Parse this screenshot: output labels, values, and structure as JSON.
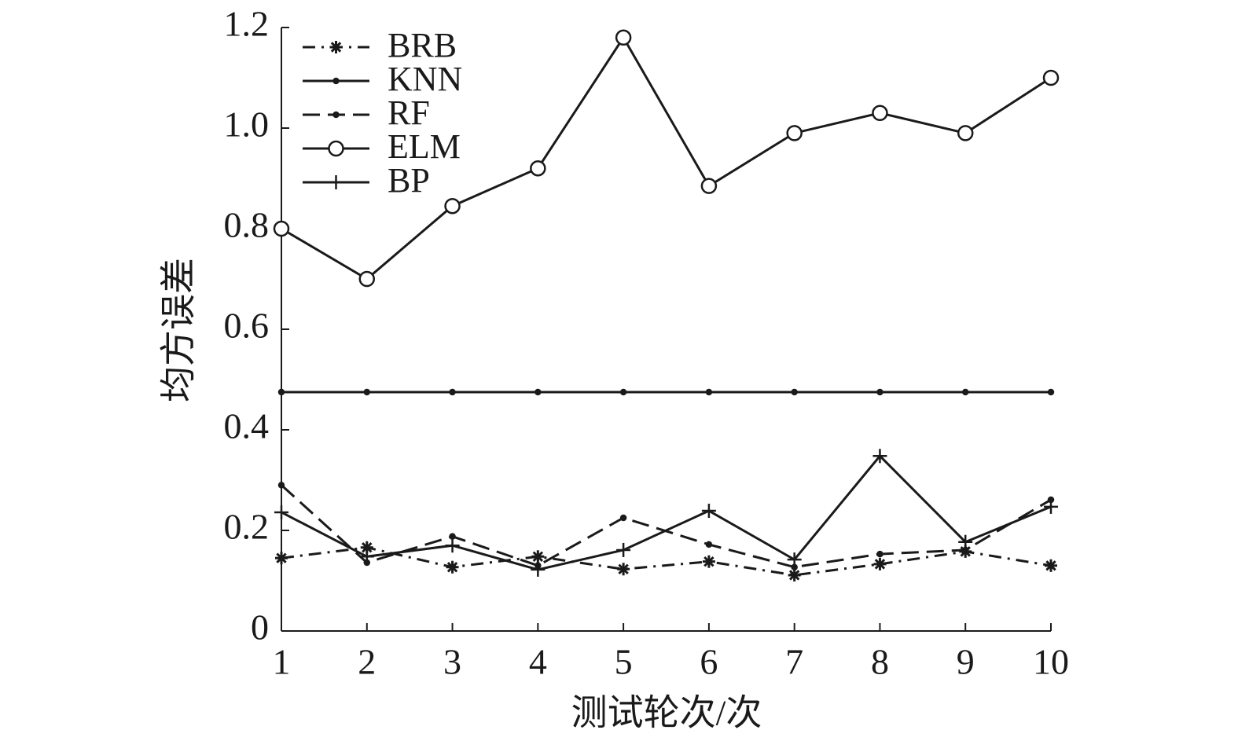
{
  "chart_data": {
    "type": "line",
    "xlabel": "测试轮次/次",
    "ylabel": "均方误差",
    "x": [
      1,
      2,
      3,
      4,
      5,
      6,
      7,
      8,
      9,
      10
    ],
    "xlim": [
      1,
      10
    ],
    "xticks": [
      1,
      2,
      3,
      4,
      5,
      6,
      7,
      8,
      9,
      10
    ],
    "ylim": [
      0,
      1.2
    ],
    "yticks": [
      0,
      0.2,
      0.4,
      0.6,
      0.8,
      {
        "value": 1,
        "label": "1.0"
      },
      1.2
    ],
    "grid": false,
    "legend": "upper left",
    "series": [
      {
        "name": "BRB",
        "color": "#1a1a1a",
        "dash": "dashdot",
        "marker": "asterisk",
        "values": [
          0.145,
          0.166,
          0.127,
          0.148,
          0.123,
          0.138,
          0.111,
          0.133,
          0.158,
          0.13
        ]
      },
      {
        "name": "KNN",
        "color": "#1a1a1a",
        "dash": "solid",
        "marker": "dot",
        "values": [
          0.475,
          0.475,
          0.475,
          0.475,
          0.475,
          0.475,
          0.475,
          0.475,
          0.475,
          0.475
        ]
      },
      {
        "name": "RF",
        "color": "#1a1a1a",
        "dash": "dashed",
        "marker": "dot",
        "values": [
          0.29,
          0.136,
          0.188,
          0.13,
          0.225,
          0.172,
          0.127,
          0.153,
          0.161,
          0.261
        ]
      },
      {
        "name": "ELM",
        "color": "#1a1a1a",
        "dash": "solid",
        "marker": "circle",
        "values": [
          0.8,
          0.7,
          0.845,
          0.92,
          1.18,
          0.885,
          0.99,
          1.03,
          0.99,
          1.1
        ]
      },
      {
        "name": "BP",
        "color": "#1a1a1a",
        "dash": "solid",
        "marker": "plus",
        "values": [
          0.236,
          0.148,
          0.17,
          0.122,
          0.161,
          0.239,
          0.142,
          0.348,
          0.177,
          0.247
        ]
      }
    ]
  }
}
